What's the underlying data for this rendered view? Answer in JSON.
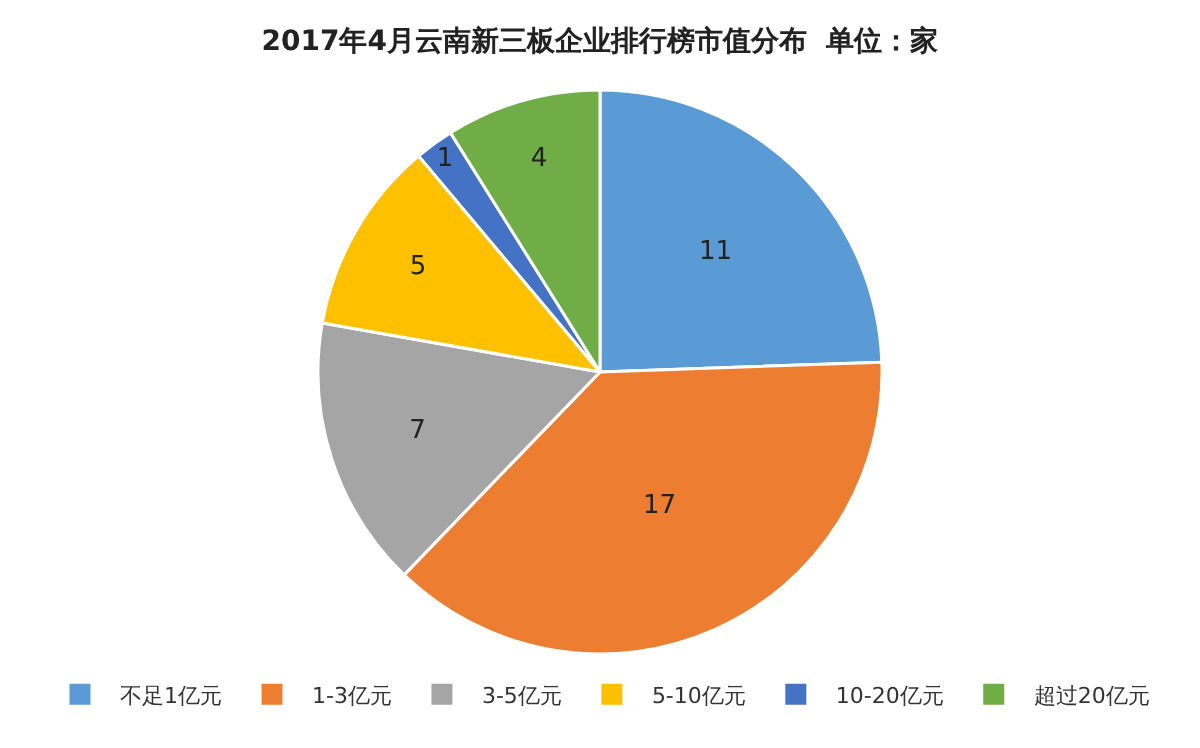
{
  "chart_data": {
    "type": "pie",
    "title": "2017年4月云南新三板企业排行榜市值分布  单位：家",
    "categories": [
      "不足1亿元",
      "1-3亿元",
      "3-5亿元",
      "5-10亿元",
      "10-20亿元",
      "超过20亿元"
    ],
    "values": [
      11,
      17,
      7,
      5,
      1,
      4
    ],
    "colors": [
      "#5b9bd5",
      "#ed7d31",
      "#a5a5a5",
      "#ffc000",
      "#4472c4",
      "#70ad47"
    ],
    "data_labels": true,
    "legend": "bottom"
  }
}
